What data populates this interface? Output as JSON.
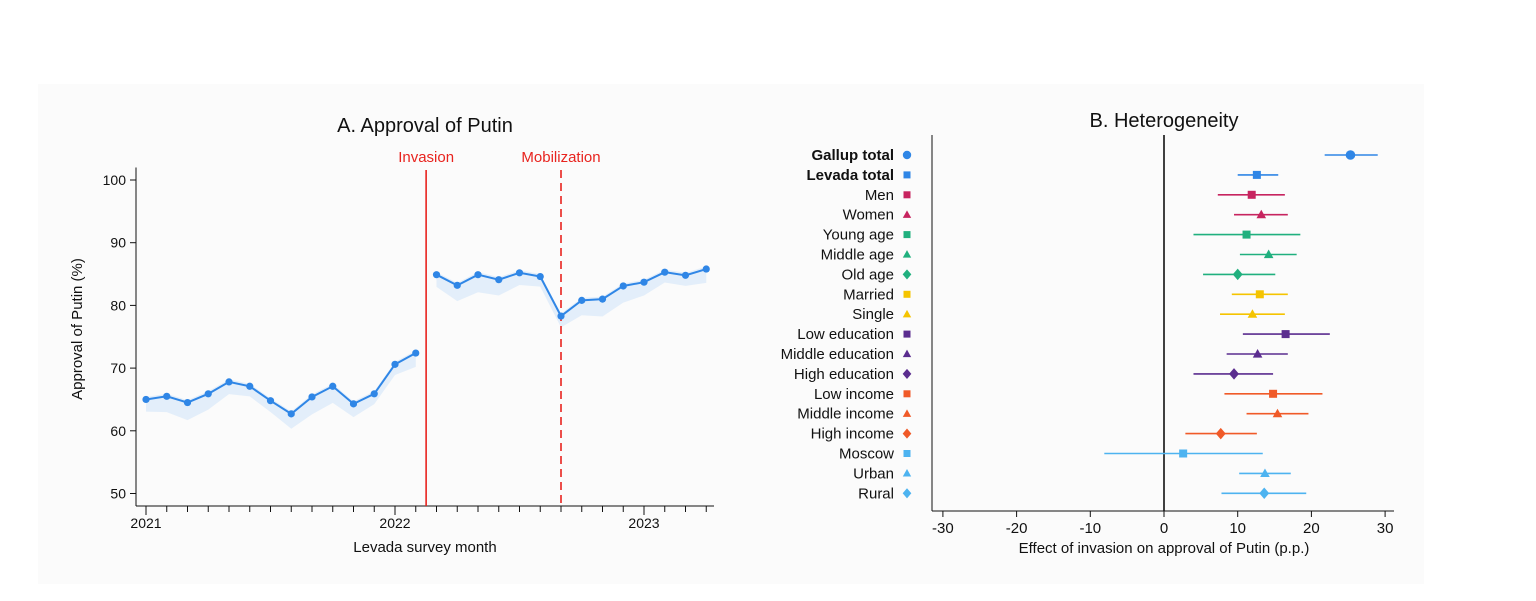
{
  "chart_data": [
    {
      "type": "line",
      "title": "A. Approval of Putin",
      "xlabel": "Levada survey month",
      "ylabel": "Approval of Putin (%)",
      "ylim": [
        48,
        102
      ],
      "yticks": [
        50,
        60,
        70,
        80,
        90,
        100
      ],
      "xticklabels": [
        "2021",
        "2022",
        "2023"
      ],
      "grid": false,
      "annotations": [
        {
          "label": "Invasion",
          "style": "solid",
          "color": "#e8231e"
        },
        {
          "label": "Mobilization",
          "style": "dashed",
          "color": "#e8231e"
        }
      ],
      "series": [
        {
          "color": "#2f86e6",
          "points": [
            {
              "date": "2021-01",
              "value": 65.0
            },
            {
              "date": "2021-02",
              "value": 65.5
            },
            {
              "date": "2021-03",
              "value": 64.5
            },
            {
              "date": "2021-04",
              "value": 65.9
            },
            {
              "date": "2021-05",
              "value": 67.8
            },
            {
              "date": "2021-06",
              "value": 67.1
            },
            {
              "date": "2021-07",
              "value": 64.8
            },
            {
              "date": "2021-08",
              "value": 62.7
            },
            {
              "date": "2021-09",
              "value": 65.4
            },
            {
              "date": "2021-10",
              "value": 67.1
            },
            {
              "date": "2021-11",
              "value": 64.3
            },
            {
              "date": "2021-12",
              "value": 65.9
            },
            {
              "date": "2022-01",
              "value": 70.6
            },
            {
              "date": "2022-02",
              "value": 72.4
            },
            {
              "date": "2022-03",
              "value": 84.9
            },
            {
              "date": "2022-04",
              "value": 83.2
            },
            {
              "date": "2022-05",
              "value": 84.9
            },
            {
              "date": "2022-06",
              "value": 84.1
            },
            {
              "date": "2022-07",
              "value": 85.2
            },
            {
              "date": "2022-08",
              "value": 84.6
            },
            {
              "date": "2022-09",
              "value": 78.3
            },
            {
              "date": "2022-10",
              "value": 80.8
            },
            {
              "date": "2022-11",
              "value": 81.0
            },
            {
              "date": "2022-12",
              "value": 83.1
            },
            {
              "date": "2023-01",
              "value": 83.7
            },
            {
              "date": "2023-02",
              "value": 85.3
            },
            {
              "date": "2023-03",
              "value": 84.8
            },
            {
              "date": "2023-04",
              "value": 85.8
            }
          ]
        }
      ]
    },
    {
      "type": "scatter",
      "title": "B. Heterogeneity",
      "xlabel": "Effect of invasion on approval of Putin (p.p.)",
      "xlim": [
        -32,
        31
      ],
      "xticks": [
        -30,
        -20,
        -10,
        0,
        10,
        20,
        30
      ],
      "grid": false,
      "series": [
        {
          "name": "Gallup total",
          "bold": true,
          "color": "#2f86e6",
          "marker": "circle",
          "estimate": 25.3,
          "ci": [
            21.8,
            29.0
          ]
        },
        {
          "name": "Levada total",
          "bold": true,
          "color": "#2f86e6",
          "marker": "square",
          "estimate": 12.6,
          "ci": [
            10.0,
            15.5
          ]
        },
        {
          "name": "Men",
          "color": "#c7245f",
          "marker": "square",
          "estimate": 11.9,
          "ci": [
            7.3,
            16.4
          ]
        },
        {
          "name": "Women",
          "color": "#c7245f",
          "marker": "triangle",
          "estimate": 13.2,
          "ci": [
            9.5,
            16.8
          ]
        },
        {
          "name": "Young age",
          "color": "#20b07e",
          "marker": "square",
          "estimate": 11.2,
          "ci": [
            4.0,
            18.5
          ]
        },
        {
          "name": "Middle age",
          "color": "#20b07e",
          "marker": "triangle",
          "estimate": 14.2,
          "ci": [
            10.3,
            18.0
          ]
        },
        {
          "name": "Old age",
          "color": "#20b07e",
          "marker": "diamond",
          "estimate": 10.0,
          "ci": [
            5.3,
            15.1
          ]
        },
        {
          "name": "Married",
          "color": "#f5c400",
          "marker": "square",
          "estimate": 13.0,
          "ci": [
            9.2,
            16.8
          ]
        },
        {
          "name": "Single",
          "color": "#f5c400",
          "marker": "triangle",
          "estimate": 12.0,
          "ci": [
            7.6,
            16.4
          ]
        },
        {
          "name": "Low education",
          "color": "#5b2d8f",
          "marker": "square",
          "estimate": 16.5,
          "ci": [
            10.7,
            22.5
          ]
        },
        {
          "name": "Middle education",
          "color": "#5b2d8f",
          "marker": "triangle",
          "estimate": 12.7,
          "ci": [
            8.5,
            16.8
          ]
        },
        {
          "name": "High education",
          "color": "#5b2d8f",
          "marker": "diamond",
          "estimate": 9.5,
          "ci": [
            4.0,
            14.8
          ]
        },
        {
          "name": "Low income",
          "color": "#f05a28",
          "marker": "square",
          "estimate": 14.8,
          "ci": [
            8.2,
            21.5
          ]
        },
        {
          "name": "Middle income",
          "color": "#f05a28",
          "marker": "triangle",
          "estimate": 15.4,
          "ci": [
            11.2,
            19.6
          ]
        },
        {
          "name": "High income",
          "color": "#f05a28",
          "marker": "diamond",
          "estimate": 7.7,
          "ci": [
            2.9,
            12.6
          ]
        },
        {
          "name": "Moscow",
          "color": "#4db3f0",
          "marker": "square",
          "estimate": 2.6,
          "ci": [
            -8.1,
            13.4
          ]
        },
        {
          "name": "Urban",
          "color": "#4db3f0",
          "marker": "triangle",
          "estimate": 13.7,
          "ci": [
            10.2,
            17.2
          ]
        },
        {
          "name": "Rural",
          "color": "#4db3f0",
          "marker": "diamond",
          "estimate": 13.6,
          "ci": [
            7.8,
            19.3
          ]
        }
      ]
    }
  ]
}
